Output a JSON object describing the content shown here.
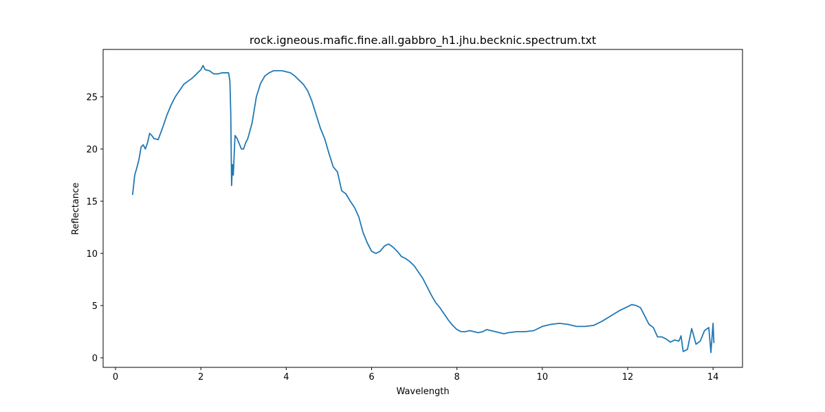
{
  "chart_data": {
    "type": "line",
    "title": "rock.igneous.mafic.fine.all.gabbro_h1.jhu.becknic.spectrum.txt",
    "x_label": "Wavelength",
    "y_label": "Reflectance",
    "xlim": [
      -0.29,
      14.69
    ],
    "ylim": [
      -0.92,
      29.54
    ],
    "xticks": [
      0,
      2,
      4,
      6,
      8,
      10,
      12,
      14
    ],
    "yticks": [
      0,
      5,
      10,
      15,
      20,
      25
    ],
    "color": "#1f77b4",
    "x": [
      0.4,
      0.45,
      0.5,
      0.55,
      0.6,
      0.65,
      0.7,
      0.75,
      0.8,
      0.85,
      0.9,
      1.0,
      1.1,
      1.2,
      1.3,
      1.4,
      1.5,
      1.6,
      1.7,
      1.8,
      1.9,
      2.0,
      2.05,
      2.1,
      2.2,
      2.3,
      2.4,
      2.5,
      2.6,
      2.65,
      2.68,
      2.7,
      2.72,
      2.74,
      2.76,
      2.8,
      2.85,
      2.9,
      2.95,
      3.0,
      3.05,
      3.1,
      3.2,
      3.3,
      3.4,
      3.5,
      3.6,
      3.7,
      3.8,
      3.9,
      4.0,
      4.1,
      4.2,
      4.3,
      4.4,
      4.5,
      4.6,
      4.7,
      4.8,
      4.9,
      5.0,
      5.1,
      5.2,
      5.3,
      5.4,
      5.5,
      5.6,
      5.7,
      5.8,
      5.9,
      6.0,
      6.1,
      6.2,
      6.3,
      6.4,
      6.5,
      6.6,
      6.7,
      6.8,
      6.9,
      7.0,
      7.1,
      7.2,
      7.3,
      7.4,
      7.5,
      7.6,
      7.7,
      7.8,
      7.9,
      8.0,
      8.1,
      8.2,
      8.3,
      8.4,
      8.5,
      8.6,
      8.7,
      8.8,
      8.9,
      9.0,
      9.1,
      9.2,
      9.4,
      9.6,
      9.8,
      10.0,
      10.2,
      10.4,
      10.6,
      10.8,
      11.0,
      11.2,
      11.4,
      11.6,
      11.8,
      12.0,
      12.1,
      12.2,
      12.3,
      12.4,
      12.5,
      12.6,
      12.7,
      12.8,
      12.9,
      13.0,
      13.1,
      13.2,
      13.25,
      13.3,
      13.4,
      13.5,
      13.6,
      13.7,
      13.8,
      13.9,
      13.95,
      14.0,
      14.02
    ],
    "values": [
      15.6,
      17.5,
      18.2,
      19.0,
      20.2,
      20.4,
      20.0,
      20.6,
      21.5,
      21.3,
      21.0,
      20.9,
      22.0,
      23.2,
      24.2,
      25.0,
      25.6,
      26.2,
      26.5,
      26.8,
      27.2,
      27.6,
      28.0,
      27.6,
      27.5,
      27.2,
      27.2,
      27.3,
      27.3,
      27.3,
      26.5,
      23.5,
      16.5,
      18.5,
      17.5,
      21.3,
      21.0,
      20.5,
      20.0,
      20.0,
      20.6,
      21.0,
      22.5,
      25.0,
      26.3,
      27.0,
      27.3,
      27.5,
      27.5,
      27.5,
      27.4,
      27.3,
      27.0,
      26.6,
      26.2,
      25.6,
      24.6,
      23.3,
      22.0,
      21.0,
      19.6,
      18.3,
      17.8,
      16.0,
      15.7,
      15.0,
      14.4,
      13.5,
      12.0,
      11.0,
      10.2,
      10.0,
      10.2,
      10.7,
      10.9,
      10.6,
      10.2,
      9.7,
      9.5,
      9.2,
      8.8,
      8.2,
      7.6,
      6.8,
      6.0,
      5.3,
      4.8,
      4.2,
      3.6,
      3.1,
      2.7,
      2.5,
      2.5,
      2.6,
      2.5,
      2.4,
      2.5,
      2.7,
      2.6,
      2.5,
      2.4,
      2.3,
      2.4,
      2.5,
      2.5,
      2.6,
      3.0,
      3.2,
      3.3,
      3.2,
      3.0,
      3.0,
      3.1,
      3.5,
      4.0,
      4.5,
      4.9,
      5.1,
      5.0,
      4.8,
      4.0,
      3.2,
      2.9,
      2.0,
      2.0,
      1.8,
      1.5,
      1.7,
      1.6,
      2.1,
      0.6,
      0.8,
      2.8,
      1.3,
      1.6,
      2.6,
      2.9,
      0.5,
      3.3,
      1.4
    ]
  }
}
